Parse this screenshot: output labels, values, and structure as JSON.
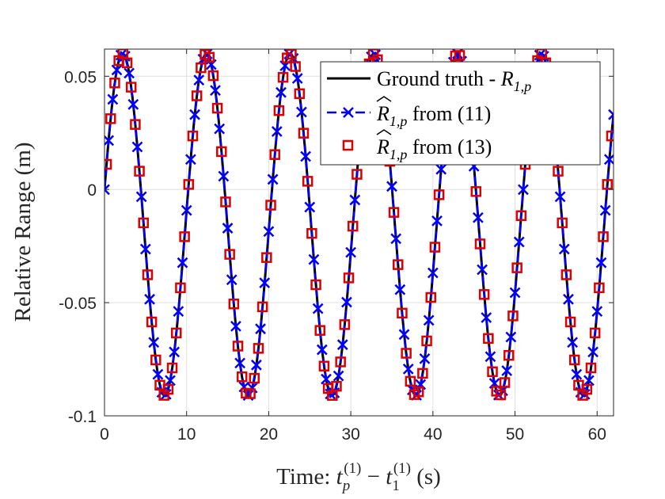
{
  "chart_data": {
    "type": "line",
    "title": "",
    "xlabel": "Time: t_p^(1) − t_1^(1) (s)",
    "xlabel_parts": {
      "prefix": "Time: ",
      "t": "t",
      "sub_p": "p",
      "sup_1a": "(1)",
      "minus": " − ",
      "sub_1": "1",
      "sup_1b": "(1)",
      "unit": " (s)"
    },
    "ylabel": "Relative Range (m)",
    "xlim": [
      0,
      62
    ],
    "ylim": [
      -0.1,
      0.062
    ],
    "xticks": [
      0,
      10,
      20,
      30,
      40,
      50,
      60
    ],
    "xtick_labels": [
      "0",
      "10",
      "20",
      "30",
      "40",
      "50",
      "60"
    ],
    "yticks": [
      -0.1,
      -0.05,
      0,
      0.05
    ],
    "ytick_labels": [
      "-0.1",
      "-0.05",
      "0",
      "0.05"
    ],
    "grid": true,
    "legend_position": "top-right",
    "signal": {
      "period_s": 10.2,
      "offset_m": -0.0155,
      "amplitude_m": 0.0755,
      "phase_rad": 0.206,
      "clip_m": [
        -0.1,
        0.062
      ]
    },
    "series": [
      {
        "name": "Ground truth - R_{1,p}",
        "legend_parts": {
          "text": "Ground truth - ",
          "sym": "R",
          "sub": "1,p"
        },
        "style": "solid",
        "color": "#000000",
        "x_step": 0.05
      },
      {
        "name": "R̂_{1,p} from (11)",
        "legend_parts": {
          "sym": "R",
          "sub": "1,p",
          "text": " from (11)"
        },
        "style": "dashed",
        "marker": "x",
        "color": "#0000ff",
        "x_start": 0,
        "x_step": 0.5
      },
      {
        "name": "R̂_{1,p} from (13)",
        "legend_parts": {
          "sym": "R",
          "sub": "1,p",
          "text": " from (13)"
        },
        "style": "none",
        "marker": "square",
        "color": "#dd0000",
        "x_start": 0.25,
        "x_step": 0.5
      }
    ]
  }
}
